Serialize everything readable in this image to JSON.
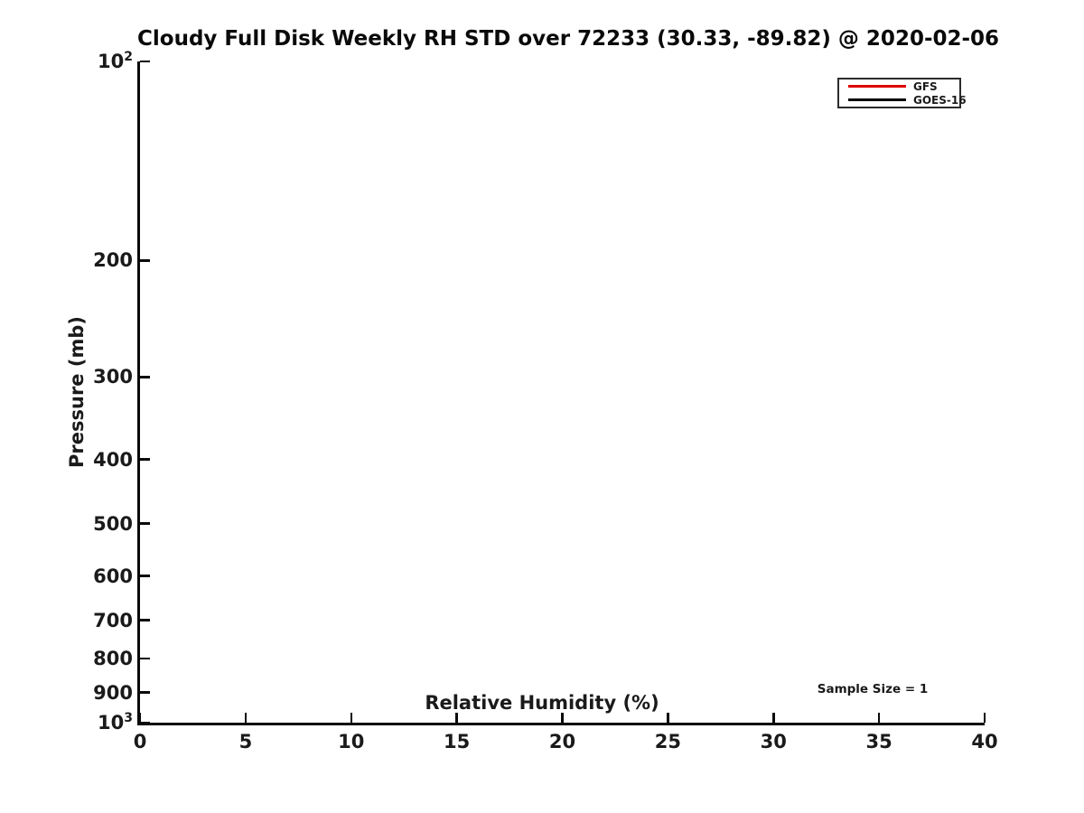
{
  "figure": {
    "background_color": "#ffffff",
    "text_color": "#1a1a1a",
    "axis_color": "#0a0a0a"
  },
  "chart_data": {
    "type": "line",
    "title": "Cloudy Full Disk Weekly RH STD over 72233 (30.33, -89.82) @ 2020-02-06",
    "xlabel": "Relative Humidity (%)",
    "ylabel": "Pressure (mb)",
    "xlim": [
      0,
      40
    ],
    "ylim": [
      1000,
      100
    ],
    "yscale": "log",
    "y_axis_inverted": true,
    "grid": false,
    "xticks": [
      {
        "label": "0",
        "value": 0
      },
      {
        "label": "5",
        "value": 5
      },
      {
        "label": "10",
        "value": 10
      },
      {
        "label": "15",
        "value": 15
      },
      {
        "label": "20",
        "value": 20
      },
      {
        "label": "25",
        "value": 25
      },
      {
        "label": "30",
        "value": 30
      },
      {
        "label": "35",
        "value": 35
      },
      {
        "label": "40",
        "value": 40
      }
    ],
    "yticks": [
      {
        "label": "10^2",
        "value": 100
      },
      {
        "label": "200",
        "value": 200
      },
      {
        "label": "300",
        "value": 300
      },
      {
        "label": "400",
        "value": 400
      },
      {
        "label": "500",
        "value": 500
      },
      {
        "label": "600",
        "value": 600
      },
      {
        "label": "700",
        "value": 700
      },
      {
        "label": "800",
        "value": 800
      },
      {
        "label": "900",
        "value": 900
      },
      {
        "label": "10^3",
        "value": 1000
      }
    ],
    "legend": {
      "position": "upper right",
      "entries": [
        {
          "label": "GFS",
          "color": "#e00000"
        },
        {
          "label": "GOES-16",
          "color": "#000000"
        }
      ]
    },
    "series": [
      {
        "name": "GFS",
        "color": "#e00000",
        "points": []
      },
      {
        "name": "GOES-16",
        "color": "#000000",
        "points": []
      }
    ],
    "annotation": {
      "text": "Sample Size = 1",
      "x": 34.7,
      "y_mb": 890
    }
  }
}
